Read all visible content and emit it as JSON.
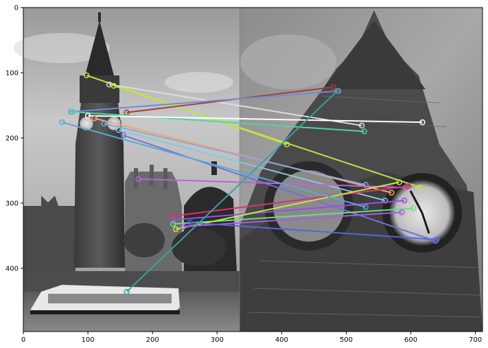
{
  "chart_data": {
    "type": "image-plot",
    "title": "",
    "xlabel": "",
    "ylabel": "",
    "xlim": [
      0,
      711
    ],
    "ylim": [
      497,
      0
    ],
    "x_ticks": [
      0,
      100,
      200,
      300,
      400,
      500,
      600,
      700
    ],
    "y_ticks": [
      0,
      100,
      200,
      300,
      400
    ],
    "split_x": 335,
    "matches": [
      {
        "x1": 98,
        "y1": 104,
        "x2": 408,
        "y2": 210,
        "color": "#c6e03a"
      },
      {
        "x1": 133,
        "y1": 118,
        "x2": 524,
        "y2": 181,
        "color": "#dcdcdc"
      },
      {
        "x1": 140,
        "y1": 120,
        "x2": 615,
        "y2": 276,
        "color": "#b7e64a"
      },
      {
        "x1": 160,
        "y1": 161,
        "x2": 480,
        "y2": 122,
        "color": "#a63c33"
      },
      {
        "x1": 74,
        "y1": 160,
        "x2": 488,
        "y2": 128,
        "color": "#6f8bdc"
      },
      {
        "x1": 76,
        "y1": 160,
        "x2": 528,
        "y2": 190,
        "color": "#4fd69c"
      },
      {
        "x1": 100,
        "y1": 166,
        "x2": 618,
        "y2": 176,
        "color": "#ffffff"
      },
      {
        "x1": 110,
        "y1": 170,
        "x2": 570,
        "y2": 284,
        "color": "#f0a860"
      },
      {
        "x1": 125,
        "y1": 178,
        "x2": 530,
        "y2": 272,
        "color": "#8aa4e8"
      },
      {
        "x1": 148,
        "y1": 188,
        "x2": 560,
        "y2": 296,
        "color": "#87c8e0"
      },
      {
        "x1": 155,
        "y1": 196,
        "x2": 638,
        "y2": 358,
        "color": "#7070e0"
      },
      {
        "x1": 178,
        "y1": 263,
        "x2": 592,
        "y2": 276,
        "color": "#c060d8"
      },
      {
        "x1": 230,
        "y1": 320,
        "x2": 596,
        "y2": 274,
        "color": "#e0306e"
      },
      {
        "x1": 230,
        "y1": 326,
        "x2": 590,
        "y2": 296,
        "color": "#9c4ee6"
      },
      {
        "x1": 232,
        "y1": 332,
        "x2": 604,
        "y2": 308,
        "color": "#66e080"
      },
      {
        "x1": 236,
        "y1": 340,
        "x2": 582,
        "y2": 268,
        "color": "#c0e84a"
      },
      {
        "x1": 248,
        "y1": 336,
        "x2": 586,
        "y2": 314,
        "color": "#ae58e6"
      },
      {
        "x1": 258,
        "y1": 330,
        "x2": 640,
        "y2": 356,
        "color": "#5566e0"
      },
      {
        "x1": 160,
        "y1": 436,
        "x2": 486,
        "y2": 128,
        "color": "#3aa0a8"
      },
      {
        "x1": 60,
        "y1": 176,
        "x2": 530,
        "y2": 306,
        "color": "#5aa8d8"
      }
    ]
  }
}
